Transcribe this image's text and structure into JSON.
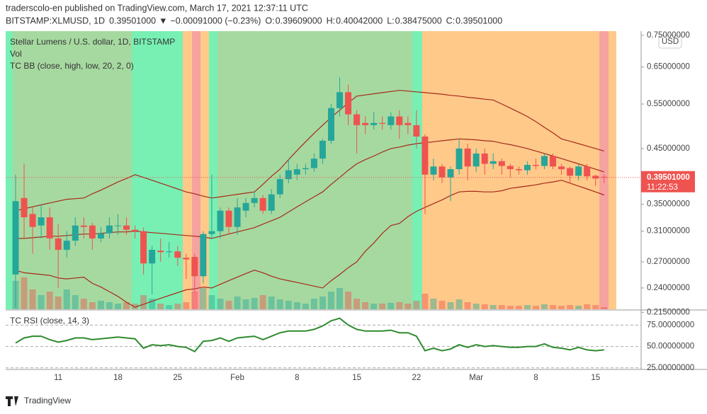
{
  "header": {
    "line1": "traderscolo-en published on TradingView.com, March 17, 2021 12:37:11 UTC",
    "symbol": "BITSTAMP:XLMUSD, 1D",
    "price": "0.39501000",
    "arrow": "▼",
    "change": "−0.00091000 (−0.23%)",
    "ohlc": [
      {
        "key": "O:",
        "value": "0.39609000"
      },
      {
        "key": "H:",
        "value": "0.40042000"
      },
      {
        "key": "L:",
        "value": "0.38475000"
      },
      {
        "key": "C:",
        "value": "0.39501000"
      }
    ]
  },
  "legend": {
    "main": "Stellar Lumens / U.S. dollar, 1D, BITSTAMP",
    "vol": "Vol",
    "bb": "TC BB (close, high, low, 20, 2, 0)",
    "currency": "USD"
  },
  "footer": "TradingView",
  "chart_data": [
    {
      "type": "candlestick",
      "log": true,
      "ylim": [
        0.218,
        0.764
      ],
      "yticks": [
        {
          "value": 0.75,
          "label": "0.75000000"
        },
        {
          "value": 0.65,
          "label": "0.65000000"
        },
        {
          "value": 0.55,
          "label": "0.55000000"
        },
        {
          "value": 0.45,
          "label": "0.45000000"
        },
        {
          "value": 0.35,
          "label": "0.35000000"
        },
        {
          "value": 0.31,
          "label": "0.31000000"
        },
        {
          "value": 0.27,
          "label": "0.27000000"
        },
        {
          "value": 0.24,
          "label": "0.24000000"
        },
        {
          "value": 0.215,
          "label": "0.21500000"
        }
      ],
      "last_price": {
        "value": 0.39501,
        "label": "0.39501000",
        "countdown": "11:22:53"
      },
      "categories": [
        null,
        null,
        null,
        null,
        null,
        "11",
        null,
        null,
        null,
        null,
        null,
        null,
        "18",
        null,
        null,
        null,
        null,
        null,
        null,
        "25",
        null,
        null,
        null,
        null,
        null,
        null,
        "Feb",
        null,
        null,
        null,
        null,
        null,
        null,
        "8",
        null,
        null,
        null,
        null,
        null,
        null,
        "15",
        null,
        null,
        null,
        null,
        null,
        null,
        "22",
        null,
        null,
        null,
        null,
        null,
        null,
        "Mar",
        null,
        null,
        null,
        null,
        null,
        null,
        "8",
        null,
        null,
        null,
        null,
        null,
        null,
        "15",
        null
      ],
      "up_color": "#26a69a",
      "down_color": "#ef5350",
      "open": [
        0.255,
        0.36,
        0.335,
        0.318,
        0.33,
        0.3,
        0.285,
        0.297,
        0.318,
        0.318,
        0.3,
        0.307,
        0.317,
        0.318,
        0.312,
        0.31,
        0.268,
        0.284,
        0.282,
        0.283,
        0.275,
        0.276,
        0.253,
        0.306,
        0.31,
        0.34,
        0.316,
        0.34,
        0.352,
        0.36,
        0.34,
        0.366,
        0.392,
        0.4,
        0.41,
        0.412,
        0.43,
        0.466,
        0.54,
        0.58,
        0.525,
        0.505,
        0.5,
        0.505,
        0.5,
        0.52,
        0.505,
        0.5,
        0.475,
        0.4,
        0.415,
        0.395,
        0.41,
        0.45,
        0.415,
        0.44,
        0.42,
        0.425,
        0.416,
        0.41,
        0.408,
        0.418,
        0.416,
        0.435,
        0.415,
        0.412,
        0.398,
        0.415,
        0.398,
        0.39609
      ],
      "high": [
        0.4,
        0.42,
        0.345,
        0.35,
        0.345,
        0.32,
        0.31,
        0.33,
        0.33,
        0.322,
        0.316,
        0.33,
        0.335,
        0.33,
        0.318,
        0.315,
        0.29,
        0.3,
        0.295,
        0.29,
        0.28,
        0.28,
        0.31,
        0.4,
        0.345,
        0.345,
        0.36,
        0.36,
        0.37,
        0.365,
        0.375,
        0.4,
        0.43,
        0.42,
        0.42,
        0.44,
        0.47,
        0.55,
        0.62,
        0.6,
        0.535,
        0.52,
        0.53,
        0.52,
        0.53,
        0.535,
        0.52,
        0.535,
        0.48,
        0.43,
        0.42,
        0.415,
        0.47,
        0.46,
        0.45,
        0.45,
        0.44,
        0.43,
        0.42,
        0.415,
        0.425,
        0.43,
        0.44,
        0.44,
        0.42,
        0.415,
        0.42,
        0.42,
        0.4,
        0.40042
      ],
      "low": [
        0.22,
        0.3,
        0.28,
        0.3,
        0.285,
        0.24,
        0.275,
        0.29,
        0.3,
        0.285,
        0.295,
        0.3,
        0.305,
        0.305,
        0.3,
        0.255,
        0.233,
        0.27,
        0.275,
        0.265,
        0.25,
        0.235,
        0.245,
        0.3,
        0.3,
        0.305,
        0.305,
        0.33,
        0.345,
        0.335,
        0.335,
        0.36,
        0.385,
        0.39,
        0.4,
        0.405,
        0.42,
        0.46,
        0.52,
        0.5,
        0.44,
        0.48,
        0.49,
        0.49,
        0.49,
        0.47,
        0.48,
        0.45,
        0.335,
        0.39,
        0.385,
        0.355,
        0.4,
        0.39,
        0.405,
        0.4,
        0.41,
        0.4,
        0.395,
        0.4,
        0.4,
        0.41,
        0.41,
        0.41,
        0.4,
        0.385,
        0.39,
        0.39,
        0.38,
        0.38475
      ],
      "close": [
        0.355,
        0.33,
        0.316,
        0.33,
        0.3,
        0.285,
        0.297,
        0.318,
        0.316,
        0.3,
        0.307,
        0.318,
        0.318,
        0.312,
        0.31,
        0.268,
        0.285,
        0.282,
        0.283,
        0.275,
        0.273,
        0.253,
        0.306,
        0.31,
        0.34,
        0.316,
        0.345,
        0.352,
        0.36,
        0.34,
        0.366,
        0.392,
        0.408,
        0.41,
        0.412,
        0.43,
        0.466,
        0.54,
        0.58,
        0.525,
        0.5,
        0.5,
        0.505,
        0.503,
        0.52,
        0.5,
        0.5,
        0.475,
        0.4,
        0.415,
        0.395,
        0.41,
        0.45,
        0.415,
        0.44,
        0.42,
        0.425,
        0.416,
        0.41,
        0.408,
        0.418,
        0.416,
        0.435,
        0.415,
        0.41,
        0.398,
        0.415,
        0.397,
        0.393,
        0.39501
      ],
      "volume": [
        40,
        45,
        28,
        20,
        25,
        18,
        28,
        20,
        15,
        10,
        12,
        10,
        8,
        10,
        8,
        20,
        15,
        8,
        6,
        8,
        10,
        25,
        30,
        20,
        15,
        12,
        18,
        14,
        16,
        20,
        18,
        14,
        12,
        10,
        8,
        15,
        18,
        25,
        30,
        25,
        15,
        10,
        8,
        8,
        9,
        10,
        8,
        12,
        22,
        15,
        12,
        10,
        14,
        10,
        8,
        7,
        6,
        6,
        5,
        5,
        6,
        5,
        7,
        6,
        5,
        6,
        5,
        7,
        6,
        3
      ],
      "series": [
        {
          "name": "upper",
          "color": "#a52a1a",
          "values": [
            0.34,
            0.343,
            0.346,
            0.349,
            0.352,
            0.355,
            0.358,
            0.359,
            0.36,
            0.367,
            0.373,
            0.38,
            0.387,
            0.393,
            0.4,
            0.395,
            0.39,
            0.385,
            0.38,
            0.375,
            0.37,
            0.367,
            0.363,
            0.36,
            0.362,
            0.364,
            0.366,
            0.368,
            0.37,
            0.383,
            0.397,
            0.41,
            0.428,
            0.446,
            0.464,
            0.482,
            0.5,
            0.518,
            0.535,
            0.553,
            0.57,
            0.573,
            0.576,
            0.579,
            0.582,
            0.585,
            0.583,
            0.581,
            0.579,
            0.577,
            0.575,
            0.572,
            0.57,
            0.567,
            0.565,
            0.562,
            0.56,
            0.55,
            0.54,
            0.53,
            0.52,
            0.508,
            0.495,
            0.483,
            0.47,
            0.465,
            0.46,
            0.455,
            0.45,
            0.445
          ]
        },
        {
          "name": "basis",
          "color": "#a52a1a",
          "values": [
            0.3,
            0.3,
            0.301,
            0.302,
            0.303,
            0.303,
            0.304,
            0.305,
            0.306,
            0.306,
            0.307,
            0.308,
            0.309,
            0.309,
            0.31,
            0.309,
            0.308,
            0.307,
            0.306,
            0.305,
            0.304,
            0.303,
            0.302,
            0.3,
            0.303,
            0.306,
            0.309,
            0.312,
            0.315,
            0.32,
            0.325,
            0.33,
            0.338,
            0.346,
            0.354,
            0.362,
            0.37,
            0.383,
            0.395,
            0.408,
            0.42,
            0.428,
            0.435,
            0.443,
            0.45,
            0.453,
            0.457,
            0.46,
            0.462,
            0.464,
            0.466,
            0.468,
            0.47,
            0.469,
            0.468,
            0.466,
            0.465,
            0.461,
            0.458,
            0.454,
            0.45,
            0.445,
            0.44,
            0.435,
            0.43,
            0.425,
            0.42,
            0.415,
            0.41,
            0.405
          ]
        },
        {
          "name": "lower",
          "color": "#a52a1a",
          "values": [
            0.26,
            0.257,
            0.256,
            0.255,
            0.254,
            0.251,
            0.25,
            0.251,
            0.252,
            0.245,
            0.241,
            0.236,
            0.231,
            0.225,
            0.22,
            0.223,
            0.226,
            0.229,
            0.232,
            0.235,
            0.238,
            0.239,
            0.241,
            0.24,
            0.244,
            0.248,
            0.252,
            0.256,
            0.26,
            0.257,
            0.253,
            0.25,
            0.248,
            0.246,
            0.244,
            0.242,
            0.24,
            0.248,
            0.255,
            0.263,
            0.27,
            0.283,
            0.294,
            0.307,
            0.318,
            0.321,
            0.331,
            0.339,
            0.345,
            0.351,
            0.357,
            0.364,
            0.37,
            0.371,
            0.371,
            0.37,
            0.37,
            0.372,
            0.376,
            0.378,
            0.38,
            0.382,
            0.385,
            0.387,
            0.39,
            0.385,
            0.38,
            0.375,
            0.37,
            0.365
          ]
        }
      ]
    },
    {
      "type": "line",
      "title": "TC RSI (close, 14, 3)",
      "ylim": [
        24,
        91
      ],
      "yticks": [
        {
          "value": 75,
          "label": "75.00000000"
        },
        {
          "value": 50,
          "label": "50.00000000"
        },
        {
          "value": 25,
          "label": "25.00000000"
        }
      ],
      "series": [
        {
          "name": "RSI",
          "color": "#2e8b2e",
          "values": [
            54,
            60,
            62,
            62,
            58,
            55,
            57,
            60,
            60,
            58,
            59,
            60,
            61,
            60,
            59,
            48,
            52,
            51,
            52,
            50,
            49,
            44,
            56,
            57,
            60,
            56,
            60,
            61,
            62,
            58,
            62,
            66,
            68,
            68,
            68,
            70,
            74,
            80,
            83,
            75,
            70,
            68,
            68,
            68,
            69,
            66,
            66,
            62,
            45,
            48,
            45,
            47,
            52,
            49,
            52,
            50,
            51,
            50,
            49,
            49,
            50,
            50,
            53,
            49,
            48,
            46,
            49,
            46,
            45,
            46
          ]
        }
      ]
    }
  ]
}
